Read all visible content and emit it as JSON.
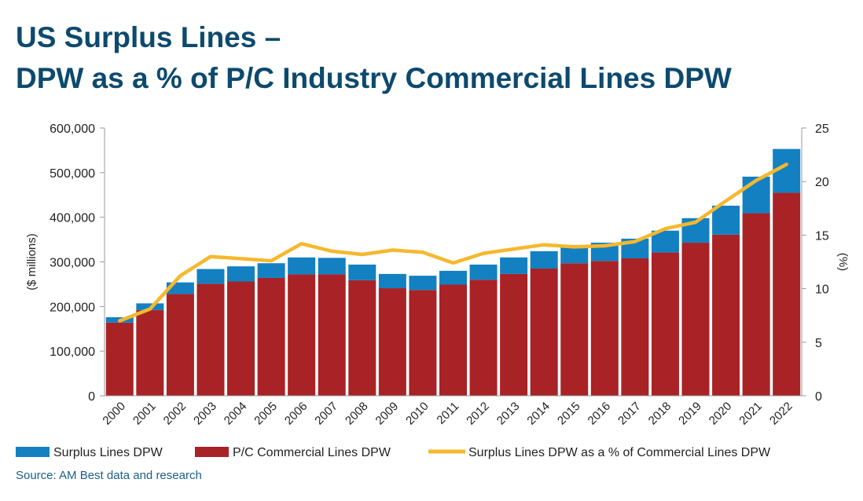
{
  "title_line1": "US Surplus Lines –",
  "title_line2": "DPW as a % of P/C Industry Commercial Lines DPW",
  "source": "Source: AM Best data and research",
  "colors": {
    "surplus": "#1380c2",
    "pc": "#a82226",
    "line": "#f5b82e",
    "title": "#0c4a6e"
  },
  "chart_data": {
    "type": "bar",
    "categories": [
      "2000",
      "2001",
      "2002",
      "2003",
      "2004",
      "2005",
      "2006",
      "2007",
      "2008",
      "2009",
      "2010",
      "2011",
      "2012",
      "2013",
      "2014",
      "2015",
      "2016",
      "2017",
      "2018",
      "2019",
      "2020",
      "2021",
      "2022"
    ],
    "series": [
      {
        "name": "Surplus Lines DPW",
        "kind": "stacked-bar",
        "values": [
          12000,
          15000,
          26000,
          33000,
          34000,
          33000,
          38000,
          37000,
          35000,
          32000,
          32000,
          31000,
          34000,
          37000,
          39000,
          41000,
          41000,
          44000,
          49000,
          55000,
          65000,
          82000,
          98000
        ]
      },
      {
        "name": "P/C Commercial Lines DPW",
        "kind": "stacked-bar",
        "values": [
          164000,
          192000,
          228000,
          251000,
          256000,
          264000,
          272000,
          272000,
          259000,
          241000,
          237000,
          249000,
          260000,
          273000,
          285000,
          297000,
          302000,
          308000,
          321000,
          343000,
          361000,
          409000,
          455000
        ]
      },
      {
        "name": "Surplus Lines DPW as a % of Commercial Lines DPW",
        "kind": "line",
        "axis": "right",
        "values": [
          7.0,
          8.1,
          11.2,
          13.0,
          12.8,
          12.6,
          14.2,
          13.5,
          13.2,
          13.6,
          13.4,
          12.4,
          13.3,
          13.7,
          14.1,
          13.9,
          14.0,
          14.4,
          15.6,
          16.2,
          18.2,
          20.1,
          21.6
        ]
      }
    ],
    "y_left": {
      "label": "($ millions)",
      "min": 0,
      "max": 600000,
      "ticks": [
        "0",
        "100,000",
        "200,000",
        "300,000",
        "400,000",
        "500,000",
        "600,000"
      ]
    },
    "y_right": {
      "label": "(%)",
      "min": 0,
      "max": 25,
      "ticks": [
        "0",
        "5",
        "10",
        "15",
        "20",
        "25"
      ]
    },
    "grid": false,
    "legend": "bottom"
  }
}
